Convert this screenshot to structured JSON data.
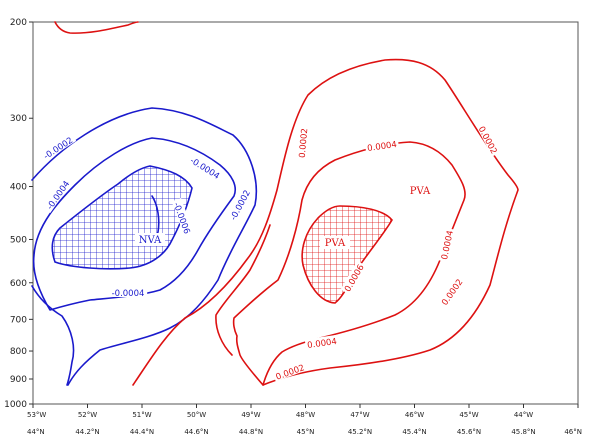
{
  "chart_data": {
    "type": "contour",
    "title": "",
    "xlabel": "",
    "ylabel": "",
    "y_scale": "log-pressure",
    "y_ticks": [
      {
        "value": 200,
        "label": "200"
      },
      {
        "value": 300,
        "label": "300"
      },
      {
        "value": 400,
        "label": "400"
      },
      {
        "value": 500,
        "label": "500"
      },
      {
        "value": 600,
        "label": "600"
      },
      {
        "value": 700,
        "label": "700"
      },
      {
        "value": 800,
        "label": "800"
      },
      {
        "value": 900,
        "label": "900"
      },
      {
        "value": 1000,
        "label": "1000"
      }
    ],
    "x_ticks": [
      {
        "lon": "53°W",
        "lat": "44°N"
      },
      {
        "lon": "52°W",
        "lat": "44.2°N"
      },
      {
        "lon": "51°W",
        "lat": "44.4°N"
      },
      {
        "lon": "50°W",
        "lat": "44.6°N"
      },
      {
        "lon": "49°W",
        "lat": "44.8°N"
      },
      {
        "lon": "48°W",
        "lat": "45°N"
      },
      {
        "lon": "47°W",
        "lat": "45.2°N"
      },
      {
        "lon": "46°W",
        "lat": "45.4°N"
      },
      {
        "lon": "45°W",
        "lat": "45.6°N"
      },
      {
        "lon": "44°W",
        "lat": "45.8°N"
      },
      {
        "lon": "",
        "lat": "46°N"
      }
    ],
    "contour_labels": [
      {
        "text": "-0.0002",
        "color": "#1a1acc"
      },
      {
        "text": "-0.0004",
        "color": "#1a1acc"
      },
      {
        "text": "-0.0004",
        "color": "#1a1acc"
      },
      {
        "text": "-0.0004",
        "color": "#1a1acc"
      },
      {
        "text": "-0.0006",
        "color": "#1a1acc"
      },
      {
        "text": "-0.0002",
        "color": "#1a1acc"
      },
      {
        "text": "0.0002",
        "color": "#dd1111"
      },
      {
        "text": "0.0004",
        "color": "#dd1111"
      },
      {
        "text": "0.0002",
        "color": "#dd1111"
      },
      {
        "text": "0.0006",
        "color": "#dd1111"
      },
      {
        "text": "0.0004",
        "color": "#dd1111"
      },
      {
        "text": "0.0002",
        "color": "#dd1111"
      },
      {
        "text": "0.0004",
        "color": "#dd1111"
      },
      {
        "text": "0.0002",
        "color": "#dd1111"
      }
    ],
    "regions": [
      {
        "label": "NVA",
        "color": "#1a1acc"
      },
      {
        "label": "PVA",
        "color": "#dd1111"
      },
      {
        "label": "PVA",
        "color": "#dd1111"
      }
    ],
    "colors": {
      "negative": "#1a1acc",
      "positive": "#dd1111"
    }
  }
}
